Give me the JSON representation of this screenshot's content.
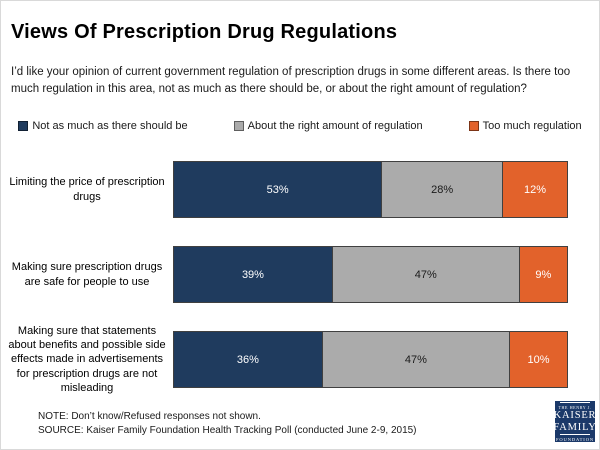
{
  "header": {
    "title": "Views Of Prescription Drug Regulations",
    "subtitle": "I’d like your opinion of current government regulation of prescription drugs in some different areas.  Is there too much regulation in this area, not as much as there should be, or about the right amount of regulation?"
  },
  "chart_data": {
    "type": "bar",
    "orientation": "horizontal",
    "stacked": true,
    "legend_position": "top",
    "axis": "none",
    "value_suffix": "%",
    "categories": [
      "Limiting the price of prescription drugs",
      "Making sure prescription drugs are safe for people to use",
      "Making sure that statements about benefits and possible side effects made in advertisements for prescription drugs are not misleading"
    ],
    "series": [
      {
        "name": "Not as much as there should be",
        "color": "#1f3b5e",
        "text_color": "#ffffff",
        "values": [
          53,
          39,
          36
        ]
      },
      {
        "name": "About the right amount of regulation",
        "color": "#ababab",
        "text_color": "#1a1a1a",
        "values": [
          28,
          47,
          47
        ]
      },
      {
        "name": "Too much regulation",
        "color": "#e2622b",
        "text_color": "#ffffff",
        "values": [
          12,
          9,
          10
        ]
      }
    ]
  },
  "footer": {
    "note": "NOTE: Don’t know/Refused responses not shown.",
    "source": "SOURCE: Kaiser Family Foundation Health Tracking Poll (conducted June 2-9, 2015)"
  },
  "logo": {
    "background": "#1b3969",
    "top_text": "THE HENRY J.",
    "line1": "KAISER",
    "line2": "FAMILY",
    "bottom_text": "FOUNDATION"
  }
}
